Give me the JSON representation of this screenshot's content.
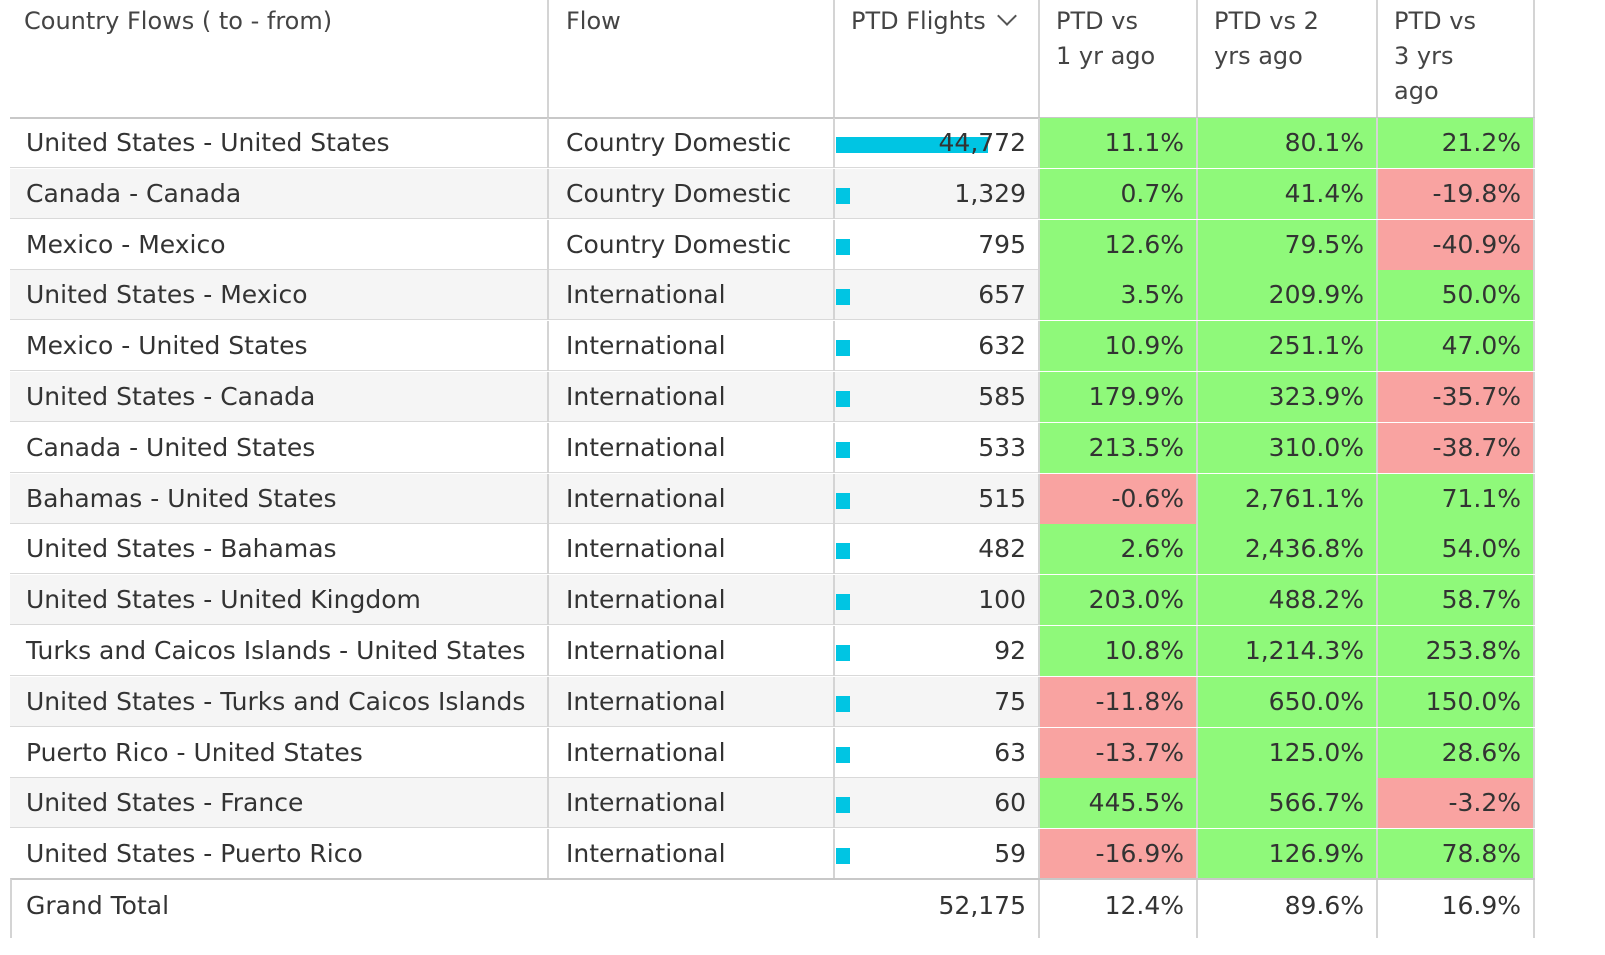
{
  "headers": {
    "country_flows": "Country Flows ( to - from)",
    "flow": "Flow",
    "ptd_flights": "PTD Flights",
    "vs1_line1": "PTD vs",
    "vs1_line2": "1 yr ago",
    "vs2_line1": "PTD vs 2",
    "vs2_line2": "yrs ago",
    "vs3_line1": "PTD vs",
    "vs3_line2": "3 yrs",
    "vs3_line3": "ago"
  },
  "colors": {
    "positive": "#8ff97a",
    "negative": "#f9a3a1",
    "bar": "#00c5e3"
  },
  "max_flights": 44772,
  "rows": [
    {
      "country": "United States - United States",
      "flow": "Country Domestic",
      "flights": 44772,
      "flights_label": "44,772",
      "vs1": "11.1%",
      "vs2": "80.1%",
      "vs3": "21.2%"
    },
    {
      "country": "Canada - Canada",
      "flow": "Country Domestic",
      "flights": 1329,
      "flights_label": "1,329",
      "vs1": "0.7%",
      "vs2": "41.4%",
      "vs3": "-19.8%"
    },
    {
      "country": "Mexico - Mexico",
      "flow": "Country Domestic",
      "flights": 795,
      "flights_label": "795",
      "vs1": "12.6%",
      "vs2": "79.5%",
      "vs3": "-40.9%"
    },
    {
      "country": "United States - Mexico",
      "flow": "International",
      "flights": 657,
      "flights_label": "657",
      "vs1": "3.5%",
      "vs2": "209.9%",
      "vs3": "50.0%"
    },
    {
      "country": "Mexico - United States",
      "flow": "International",
      "flights": 632,
      "flights_label": "632",
      "vs1": "10.9%",
      "vs2": "251.1%",
      "vs3": "47.0%"
    },
    {
      "country": "United States - Canada",
      "flow": "International",
      "flights": 585,
      "flights_label": "585",
      "vs1": "179.9%",
      "vs2": "323.9%",
      "vs3": "-35.7%"
    },
    {
      "country": "Canada - United States",
      "flow": "International",
      "flights": 533,
      "flights_label": "533",
      "vs1": "213.5%",
      "vs2": "310.0%",
      "vs3": "-38.7%"
    },
    {
      "country": "Bahamas - United States",
      "flow": "International",
      "flights": 515,
      "flights_label": "515",
      "vs1": "-0.6%",
      "vs2": "2,761.1%",
      "vs3": "71.1%"
    },
    {
      "country": "United States - Bahamas",
      "flow": "International",
      "flights": 482,
      "flights_label": "482",
      "vs1": "2.6%",
      "vs2": "2,436.8%",
      "vs3": "54.0%"
    },
    {
      "country": "United States - United Kingdom",
      "flow": "International",
      "flights": 100,
      "flights_label": "100",
      "vs1": "203.0%",
      "vs2": "488.2%",
      "vs3": "58.7%"
    },
    {
      "country": "Turks and Caicos Islands - United States",
      "flow": "International",
      "flights": 92,
      "flights_label": "92",
      "vs1": "10.8%",
      "vs2": "1,214.3%",
      "vs3": "253.8%"
    },
    {
      "country": "United States - Turks and Caicos Islands",
      "flow": "International",
      "flights": 75,
      "flights_label": "75",
      "vs1": "-11.8%",
      "vs2": "650.0%",
      "vs3": "150.0%"
    },
    {
      "country": "Puerto Rico - United States",
      "flow": "International",
      "flights": 63,
      "flights_label": "63",
      "vs1": "-13.7%",
      "vs2": "125.0%",
      "vs3": "28.6%"
    },
    {
      "country": "United States - France",
      "flow": "International",
      "flights": 60,
      "flights_label": "60",
      "vs1": "445.5%",
      "vs2": "566.7%",
      "vs3": "-3.2%"
    },
    {
      "country": "United States - Puerto Rico",
      "flow": "International",
      "flights": 59,
      "flights_label": "59",
      "vs1": "-16.9%",
      "vs2": "126.9%",
      "vs3": "78.8%"
    }
  ],
  "total": {
    "label": "Grand Total",
    "flights": "52,175",
    "vs1": "12.4%",
    "vs2": "89.6%",
    "vs3": "16.9%"
  }
}
